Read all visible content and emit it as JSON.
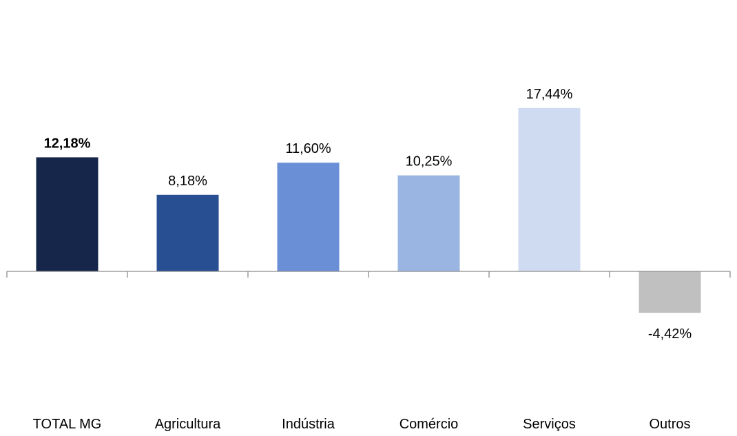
{
  "chart_data": {
    "type": "bar",
    "categories": [
      "TOTAL MG",
      "Agricultura",
      "Indústria",
      "Comércio",
      "Serviços",
      "Outros"
    ],
    "values": [
      12.18,
      8.18,
      11.6,
      10.25,
      17.44,
      -4.42
    ],
    "data_labels": [
      "12,18%",
      "8,18%",
      "11,60%",
      "10,25%",
      "17,44%",
      "-4,42%"
    ],
    "bold_labels": [
      true,
      false,
      false,
      false,
      false,
      false
    ],
    "colors": [
      "#16264a",
      "#284f92",
      "#6a8fd6",
      "#9bb5e3",
      "#cfdbf1",
      "#c0c0c0"
    ],
    "ylim": [
      -10,
      20
    ],
    "grid": false,
    "legend": "none"
  }
}
